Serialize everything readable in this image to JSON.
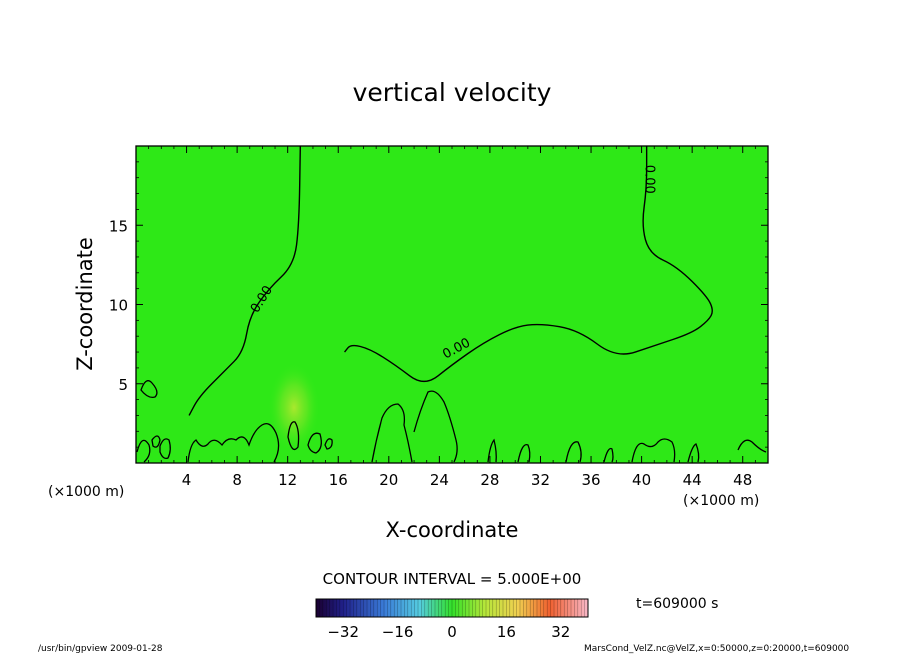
{
  "chart_data": {
    "type": "heatmap",
    "title": "vertical velocity",
    "xlabel": "X-coordinate",
    "ylabel": "Z-coordinate",
    "x_unit_left": "(×1000 m)",
    "x_unit_right": "(×1000 m)",
    "xlim": [
      0,
      50
    ],
    "ylim": [
      0,
      20
    ],
    "x_ticks": [
      4,
      8,
      12,
      16,
      20,
      24,
      28,
      32,
      36,
      40,
      44,
      48
    ],
    "y_ticks": [
      5,
      10,
      15
    ],
    "background_color": "#2ee817",
    "contour_interval_text": "CONTOUR INTERVAL = 5.000E+00",
    "contour_level_labels": [
      "0.00",
      "0.00",
      "0.00"
    ],
    "time_label": "t=609000 s",
    "colorbar": {
      "min": -40,
      "max": 40,
      "tick_labels": [
        "−32",
        "−16",
        "0",
        "16",
        "32"
      ],
      "tick_values": [
        -32,
        -16,
        0,
        16,
        32
      ]
    },
    "zero_contours": [
      {
        "points": [
          [
            13,
            20
          ],
          [
            12.9,
            15
          ],
          [
            12.5,
            12.5
          ],
          [
            10.5,
            11
          ],
          [
            9,
            9.3
          ],
          [
            8.5,
            7
          ],
          [
            7,
            5.8
          ],
          [
            5,
            4.2
          ],
          [
            4.2,
            3
          ]
        ]
      },
      {
        "points": [
          [
            16.5,
            7
          ],
          [
            17,
            7.5
          ],
          [
            18.5,
            7.2
          ],
          [
            20.5,
            6.2
          ],
          [
            22.8,
            4.8
          ],
          [
            25,
            6.2
          ],
          [
            27.5,
            7.6
          ],
          [
            30,
            8.6
          ],
          [
            32,
            8.8
          ],
          [
            35,
            8.4
          ],
          [
            38,
            6.6
          ],
          [
            41,
            7.4
          ],
          [
            44,
            8.2
          ],
          [
            45.3,
            9
          ],
          [
            45.7,
            9.6
          ],
          [
            45.2,
            10.5
          ],
          [
            42.8,
            12.4
          ],
          [
            40.6,
            13.2
          ],
          [
            40,
            15
          ],
          [
            40.4,
            17.3
          ],
          [
            40.4,
            20
          ]
        ]
      }
    ],
    "warm_blob": {
      "x": 12.5,
      "z": 3.5,
      "value": 12
    }
  },
  "footer": {
    "left": "/usr/bin/gpview   2009-01-28",
    "right": "MarsCond_VelZ.nc@VelZ,x=0:50000,z=0:20000,t=609000"
  }
}
